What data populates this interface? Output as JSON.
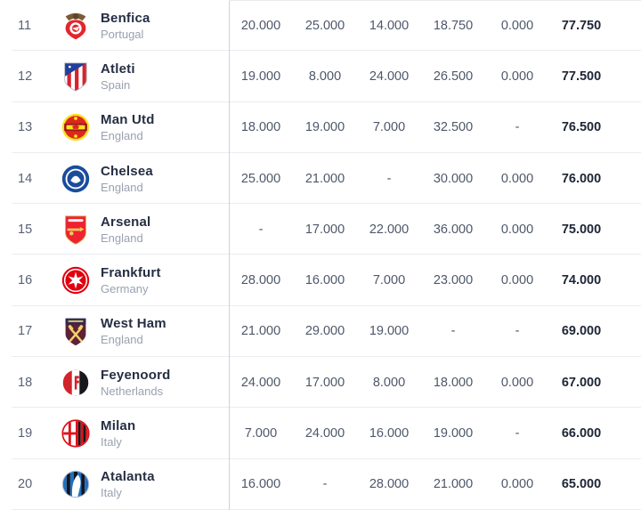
{
  "page": {
    "background": "#ffffff"
  },
  "colors": {
    "club_name": "#252e42",
    "country_text": "#99a1b0",
    "rank_text": "#596275",
    "value_text": "#4e5769",
    "total_text": "#1e2636",
    "row_divider": "#eaecf0",
    "column_separator": "#ccd2da"
  },
  "table": {
    "rows": [
      {
        "rank": "11",
        "club": "Benfica",
        "country": "Portugal",
        "crest": "benfica-crest-icon",
        "values": [
          "20.000",
          "25.000",
          "14.000",
          "18.750",
          "0.000"
        ],
        "total": "77.750"
      },
      {
        "rank": "12",
        "club": "Atleti",
        "country": "Spain",
        "crest": "atleti-crest-icon",
        "values": [
          "19.000",
          "8.000",
          "24.000",
          "26.500",
          "0.000"
        ],
        "total": "77.500"
      },
      {
        "rank": "13",
        "club": "Man Utd",
        "country": "England",
        "crest": "manutd-crest-icon",
        "values": [
          "18.000",
          "19.000",
          "7.000",
          "32.500",
          "-"
        ],
        "total": "76.500"
      },
      {
        "rank": "14",
        "club": "Chelsea",
        "country": "England",
        "crest": "chelsea-crest-icon",
        "values": [
          "25.000",
          "21.000",
          "-",
          "30.000",
          "0.000"
        ],
        "total": "76.000"
      },
      {
        "rank": "15",
        "club": "Arsenal",
        "country": "England",
        "crest": "arsenal-crest-icon",
        "values": [
          "-",
          "17.000",
          "22.000",
          "36.000",
          "0.000"
        ],
        "total": "75.000"
      },
      {
        "rank": "16",
        "club": "Frankfurt",
        "country": "Germany",
        "crest": "frankfurt-crest-icon",
        "values": [
          "28.000",
          "16.000",
          "7.000",
          "23.000",
          "0.000"
        ],
        "total": "74.000"
      },
      {
        "rank": "17",
        "club": "West Ham",
        "country": "England",
        "crest": "westham-crest-icon",
        "values": [
          "21.000",
          "29.000",
          "19.000",
          "-",
          "-"
        ],
        "total": "69.000"
      },
      {
        "rank": "18",
        "club": "Feyenoord",
        "country": "Netherlands",
        "crest": "feyenoord-crest-icon",
        "values": [
          "24.000",
          "17.000",
          "8.000",
          "18.000",
          "0.000"
        ],
        "total": "67.000"
      },
      {
        "rank": "19",
        "club": "Milan",
        "country": "Italy",
        "crest": "milan-crest-icon",
        "values": [
          "7.000",
          "24.000",
          "16.000",
          "19.000",
          "-"
        ],
        "total": "66.000"
      },
      {
        "rank": "20",
        "club": "Atalanta",
        "country": "Italy",
        "crest": "atalanta-crest-icon",
        "values": [
          "16.000",
          "-",
          "28.000",
          "21.000",
          "0.000"
        ],
        "total": "65.000"
      }
    ]
  }
}
